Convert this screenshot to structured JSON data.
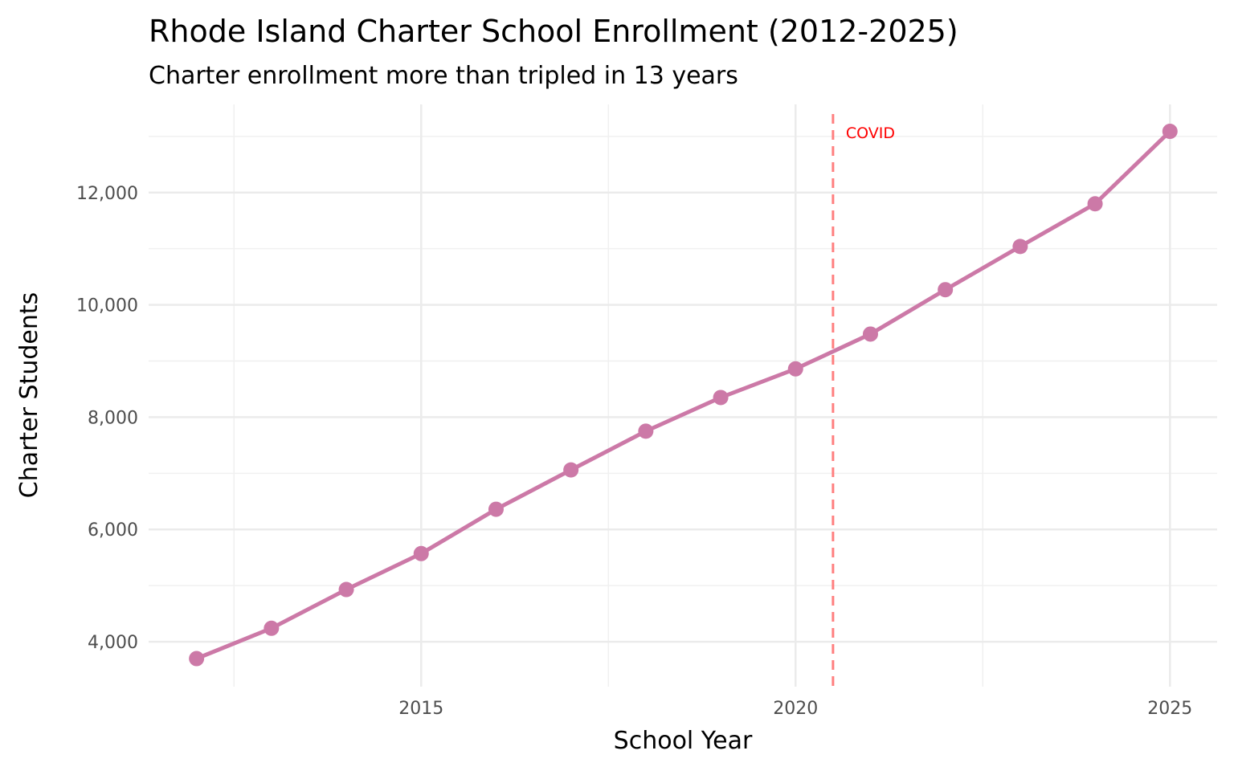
{
  "chart_data": {
    "type": "line",
    "title": "Rhode Island Charter School Enrollment (2012-2025)",
    "subtitle": "Charter enrollment more than tripled in 13 years",
    "xlabel": "School Year",
    "ylabel": "Charter Students",
    "x": [
      2012,
      2013,
      2014,
      2015,
      2016,
      2017,
      2018,
      2019,
      2020,
      2021,
      2022,
      2023,
      2024,
      2025
    ],
    "values": [
      3700,
      4240,
      4930,
      5570,
      6360,
      7060,
      7750,
      8350,
      8860,
      9480,
      10270,
      11040,
      11800,
      13090
    ],
    "xlim": [
      2011.36,
      2025.63
    ],
    "ylim": [
      3200,
      13570
    ],
    "x_ticks": [
      2015,
      2020,
      2025
    ],
    "x_tick_labels": [
      "2015",
      "2020",
      "2025"
    ],
    "y_ticks": [
      4000,
      6000,
      8000,
      10000,
      12000
    ],
    "y_tick_labels": [
      "4,000",
      "6,000",
      "8,000",
      "10,000",
      "12,000"
    ],
    "grid": true,
    "line_color": "#CC79A7",
    "annotation": {
      "x": 2020.5,
      "label": "COVID",
      "color": "#FF0000",
      "line_color": "#FF7F7F",
      "style": "dashed"
    }
  }
}
